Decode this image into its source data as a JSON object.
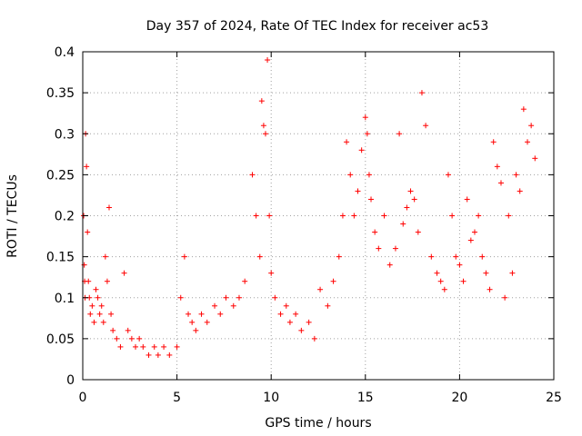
{
  "chart_data": {
    "type": "scatter",
    "title": "Day 357 of 2024, Rate Of TEC Index for receiver ac53",
    "xlabel": "GPS time / hours",
    "ylabel": "ROTI / TECUs",
    "xlim": [
      0,
      25
    ],
    "ylim": [
      0,
      0.4
    ],
    "xticks": [
      "0",
      "5",
      "10",
      "15",
      "20",
      "25"
    ],
    "yticks": [
      "0",
      "0.05",
      "0.1",
      "0.15",
      "0.2",
      "0.25",
      "0.3",
      "0.35",
      "0.4"
    ],
    "grid": true,
    "marker": "+",
    "color": "#ff0000",
    "series": [
      {
        "x": [
          0.05,
          0.08,
          0.1,
          0.12,
          0.15,
          0.2,
          0.25,
          0.3,
          0.35,
          0.4,
          0.5,
          0.6,
          0.7,
          0.8,
          0.9,
          1.0,
          1.1,
          1.2,
          1.3,
          1.4,
          1.5,
          1.6,
          1.8,
          2.0,
          2.2,
          2.4,
          2.6,
          2.8,
          3.0,
          3.2,
          3.5,
          3.8,
          4.0,
          4.3,
          4.6,
          5.0,
          5.2,
          5.4,
          5.6,
          5.8,
          6.0,
          6.3,
          6.6,
          7.0,
          7.3,
          7.6,
          8.0,
          8.3,
          8.6,
          9.0,
          9.2,
          9.4,
          9.5,
          9.6,
          9.7,
          9.8,
          9.9,
          10.0,
          10.2,
          10.5,
          10.8,
          11.0,
          11.3,
          11.6,
          12.0,
          12.3,
          12.6,
          13.0,
          13.3,
          13.6,
          13.8,
          14.0,
          14.2,
          14.4,
          14.6,
          14.8,
          15.0,
          15.1,
          15.2,
          15.3,
          15.5,
          15.7,
          16.0,
          16.3,
          16.6,
          16.8,
          17.0,
          17.2,
          17.4,
          17.6,
          17.8,
          18.0,
          18.2,
          18.5,
          18.8,
          19.0,
          19.2,
          19.4,
          19.6,
          19.8,
          20.0,
          20.2,
          20.4,
          20.6,
          20.8,
          21.0,
          21.2,
          21.4,
          21.6,
          21.8,
          22.0,
          22.2,
          22.4,
          22.6,
          22.8,
          23.0,
          23.2,
          23.4,
          23.6,
          23.8,
          24.0
        ],
        "y": [
          0.2,
          0.14,
          0.12,
          0.1,
          0.3,
          0.26,
          0.18,
          0.12,
          0.1,
          0.08,
          0.09,
          0.07,
          0.11,
          0.1,
          0.08,
          0.09,
          0.07,
          0.15,
          0.12,
          0.21,
          0.08,
          0.06,
          0.05,
          0.04,
          0.13,
          0.06,
          0.05,
          0.04,
          0.05,
          0.04,
          0.03,
          0.04,
          0.03,
          0.04,
          0.03,
          0.04,
          0.1,
          0.15,
          0.08,
          0.07,
          0.06,
          0.08,
          0.07,
          0.09,
          0.08,
          0.1,
          0.09,
          0.1,
          0.12,
          0.25,
          0.2,
          0.15,
          0.34,
          0.31,
          0.3,
          0.39,
          0.2,
          0.13,
          0.1,
          0.08,
          0.09,
          0.07,
          0.08,
          0.06,
          0.07,
          0.05,
          0.11,
          0.09,
          0.12,
          0.15,
          0.2,
          0.29,
          0.25,
          0.2,
          0.23,
          0.28,
          0.32,
          0.3,
          0.25,
          0.22,
          0.18,
          0.16,
          0.2,
          0.14,
          0.16,
          0.3,
          0.19,
          0.21,
          0.23,
          0.22,
          0.18,
          0.35,
          0.31,
          0.15,
          0.13,
          0.12,
          0.11,
          0.25,
          0.2,
          0.15,
          0.14,
          0.12,
          0.22,
          0.17,
          0.18,
          0.2,
          0.15,
          0.13,
          0.11,
          0.29,
          0.26,
          0.24,
          0.1,
          0.2,
          0.13,
          0.25,
          0.23,
          0.33,
          0.29,
          0.31,
          0.27
        ]
      }
    ]
  }
}
